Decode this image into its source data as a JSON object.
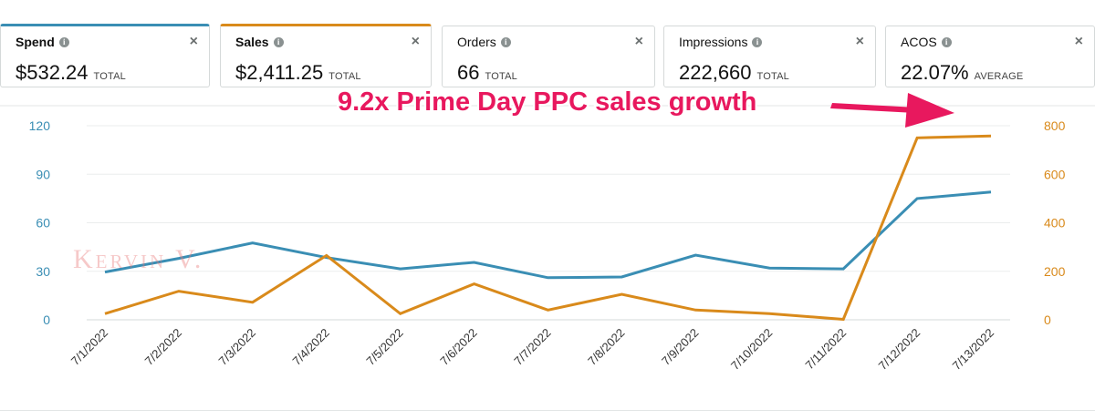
{
  "metrics": [
    {
      "name": "Spend",
      "value": "$532.24",
      "unit": "TOTAL",
      "accent": "#3a8eb4",
      "selected": true
    },
    {
      "name": "Sales",
      "value": "$2,411.25",
      "unit": "TOTAL",
      "accent": "#d98a1b",
      "selected": true
    },
    {
      "name": "Orders",
      "value": "66",
      "unit": "TOTAL",
      "selected": false
    },
    {
      "name": "Impressions",
      "value": "222,660",
      "unit": "TOTAL",
      "selected": false
    },
    {
      "name": "ACOS",
      "value": "22.07%",
      "unit": "AVERAGE",
      "selected": false
    }
  ],
  "icons": {
    "info": "info-icon",
    "close": "close-icon",
    "arrow": "arrow-icon"
  },
  "watermark": "Kervin V.",
  "chart_data": {
    "type": "line",
    "annotation": "9.2x Prime Day PPC sales growth",
    "annotation_color": "#e8185e",
    "x": [
      "7/1/2022",
      "7/2/2022",
      "7/3/2022",
      "7/4/2022",
      "7/5/2022",
      "7/6/2022",
      "7/7/2022",
      "7/8/2022",
      "7/9/2022",
      "7/10/2022",
      "7/11/2022",
      "7/12/2022",
      "7/13/2022"
    ],
    "y_left": {
      "range": [
        0,
        120
      ],
      "ticks": [
        0,
        30,
        60,
        90,
        120
      ],
      "color": "#3a8eb4"
    },
    "y_right": {
      "range": [
        0,
        800
      ],
      "ticks": [
        0,
        200,
        400,
        600,
        800
      ],
      "color": "#d98a1b"
    },
    "grid": true,
    "series": [
      {
        "name": "Spend",
        "axis": "left",
        "color": "#3a8eb4",
        "values": [
          29.5,
          38,
          47.5,
          38.5,
          31.5,
          35.5,
          26,
          26.5,
          40,
          32,
          31.5,
          75,
          79
        ]
      },
      {
        "name": "Sales",
        "axis": "right",
        "color": "#d98a1b",
        "values": [
          25,
          118,
          72,
          265,
          25,
          148,
          40,
          105,
          40,
          25,
          2,
          750,
          758
        ]
      }
    ]
  }
}
